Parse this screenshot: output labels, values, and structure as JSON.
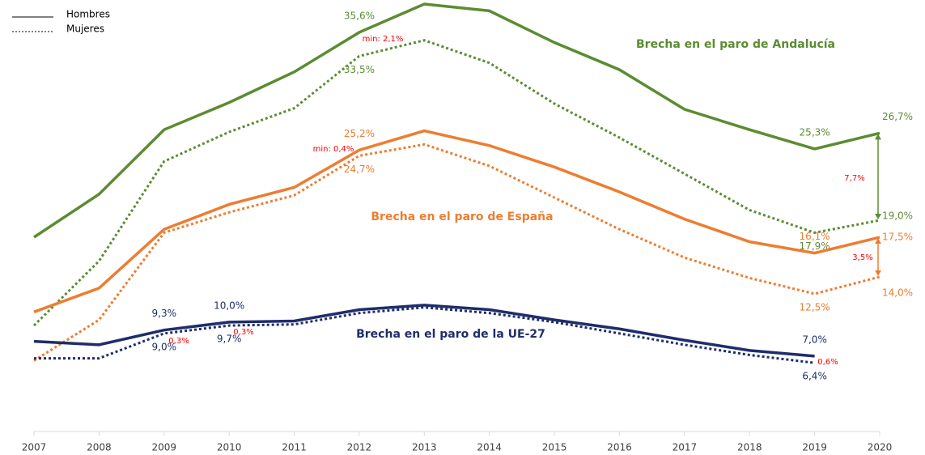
{
  "chart_data": {
    "type": "line",
    "categories": [
      "2007",
      "2008",
      "2009",
      "2010",
      "2011",
      "2012",
      "2013",
      "2014",
      "2015",
      "2016",
      "2017",
      "2018",
      "2019",
      "2020"
    ],
    "ylim": [
      0,
      38.1
    ],
    "legend": [
      {
        "name": "Hombres",
        "dash": "solid"
      },
      {
        "name": "Mujeres",
        "dash": "dotted"
      }
    ],
    "groups": [
      {
        "label": "Brecha en el paro de Andalucía",
        "color": "#5b8c32",
        "lines": [
          {
            "values": [
              17.5,
              21.3,
              27.0,
              29.4,
              32.1,
              35.6,
              38.1,
              37.5,
              34.7,
              32.3,
              28.8,
              27.0,
              25.3,
              26.7
            ],
            "value_labels": [
              null,
              null,
              null,
              null,
              null,
              "35,6%",
              null,
              null,
              null,
              null,
              null,
              null,
              "25,3%",
              "26,7%"
            ]
          },
          {
            "values": [
              9.7,
              15.4,
              24.2,
              26.8,
              28.9,
              33.5,
              34.9,
              32.9,
              29.3,
              26.3,
              23.1,
              19.9,
              17.9,
              19.0
            ],
            "value_labels": [
              null,
              null,
              null,
              null,
              null,
              "33,5%",
              null,
              null,
              null,
              null,
              null,
              null,
              "17,9%",
              "19,0%"
            ]
          }
        ]
      },
      {
        "label": "Brecha en el paro de España",
        "color": "#ed7d31",
        "lines": [
          {
            "values": [
              10.9,
              13.0,
              18.2,
              20.4,
              21.9,
              25.2,
              26.9,
              25.6,
              23.7,
              21.5,
              19.1,
              17.1,
              16.1,
              17.5
            ],
            "value_labels": [
              null,
              null,
              null,
              null,
              null,
              "25,2%",
              null,
              null,
              null,
              null,
              null,
              null,
              "16,1%",
              "17,5%"
            ]
          },
          {
            "values": [
              6.6,
              10.2,
              17.9,
              19.7,
              21.2,
              24.7,
              25.7,
              23.8,
              21.0,
              18.2,
              15.7,
              13.9,
              12.5,
              14.0
            ],
            "value_labels": [
              null,
              null,
              null,
              null,
              null,
              "24,7%",
              null,
              null,
              null,
              null,
              null,
              null,
              "12,5%",
              "14,0%"
            ]
          }
        ]
      },
      {
        "label": "Brecha en el paro de la UE-27",
        "color": "#1f2d6b",
        "lines": [
          {
            "values": [
              8.3,
              8.0,
              9.3,
              10.0,
              10.1,
              11.1,
              11.5,
              11.1,
              10.2,
              9.4,
              8.4,
              7.5,
              7.0,
              null
            ],
            "value_labels": [
              null,
              null,
              "9,3%",
              "10,0%",
              null,
              null,
              null,
              null,
              null,
              null,
              null,
              null,
              "7,0%",
              null
            ]
          },
          {
            "values": [
              6.8,
              6.8,
              9.0,
              9.7,
              9.8,
              10.8,
              11.3,
              10.8,
              10.0,
              9.0,
              8.0,
              7.1,
              6.4,
              null
            ],
            "value_labels": [
              null,
              null,
              "9,0%",
              "9,7%",
              null,
              null,
              null,
              null,
              null,
              null,
              null,
              null,
              "6,4%",
              null
            ]
          }
        ]
      }
    ],
    "annotations": [
      "min: 2,1%",
      "min: 0,4%",
      "0,3%",
      "0,3%",
      "0,6%",
      "7,7%",
      "3,5%"
    ]
  }
}
